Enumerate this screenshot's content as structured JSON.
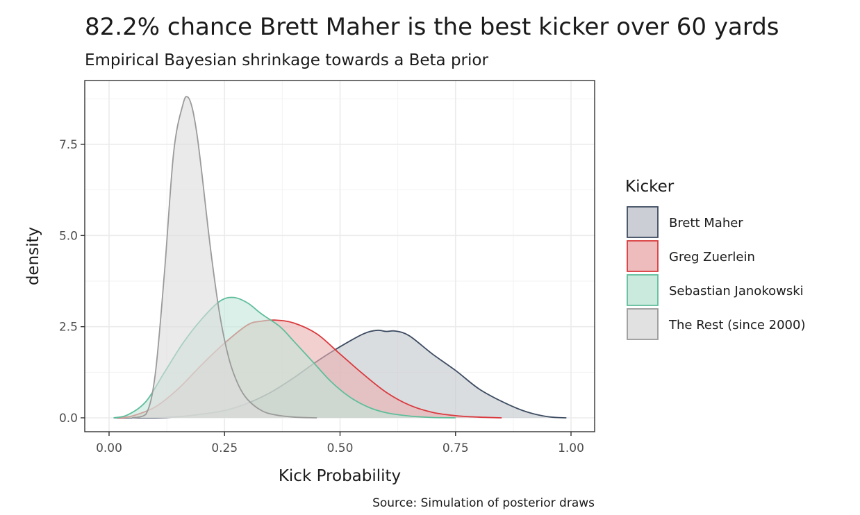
{
  "chart_data": {
    "type": "area",
    "title": "82.2% chance Brett Maher is the best kicker over 60 yards",
    "subtitle": "Empirical Bayesian shrinkage towards a Beta prior",
    "xlabel": "Kick Probability",
    "ylabel": "density",
    "caption": "Source: Simulation of posterior draws",
    "xlim": [
      0,
      1
    ],
    "ylim": [
      0,
      9
    ],
    "x_ticks": [
      "0.00",
      "0.25",
      "0.50",
      "0.75",
      "1.00"
    ],
    "y_ticks": [
      "0.0",
      "2.5",
      "5.0",
      "7.5"
    ],
    "grid": true,
    "legend": {
      "title": "Kicker",
      "position": "right"
    },
    "series": [
      {
        "name": "Brett Maher",
        "color": "#3d4b61",
        "fill": "#c2c6cc",
        "x": [
          0.01,
          0.1,
          0.15,
          0.2,
          0.25,
          0.3,
          0.35,
          0.4,
          0.45,
          0.5,
          0.55,
          0.58,
          0.6,
          0.62,
          0.65,
          0.7,
          0.75,
          0.8,
          0.85,
          0.9,
          0.95,
          0.99
        ],
        "y": [
          0.0,
          0.0,
          0.03,
          0.1,
          0.2,
          0.4,
          0.7,
          1.1,
          1.55,
          1.95,
          2.3,
          2.4,
          2.37,
          2.38,
          2.25,
          1.75,
          1.3,
          0.8,
          0.45,
          0.18,
          0.03,
          0.0
        ]
      },
      {
        "name": "Greg Zuerlein",
        "color": "#d93a3e",
        "fill": "#ebb0b1",
        "x": [
          0.02,
          0.05,
          0.1,
          0.15,
          0.2,
          0.25,
          0.3,
          0.33,
          0.36,
          0.4,
          0.45,
          0.5,
          0.55,
          0.6,
          0.65,
          0.7,
          0.75,
          0.8,
          0.85
        ],
        "y": [
          0.0,
          0.05,
          0.3,
          0.8,
          1.45,
          2.05,
          2.55,
          2.65,
          2.68,
          2.6,
          2.3,
          1.75,
          1.2,
          0.7,
          0.35,
          0.15,
          0.06,
          0.02,
          0.0
        ]
      },
      {
        "name": "Sebastian Janokowski",
        "color": "#5fbe9b",
        "fill": "#c2e6d8",
        "x": [
          0.01,
          0.04,
          0.08,
          0.12,
          0.16,
          0.2,
          0.24,
          0.27,
          0.3,
          0.33,
          0.37,
          0.4,
          0.44,
          0.48,
          0.52,
          0.56,
          0.6,
          0.65,
          0.7,
          0.75
        ],
        "y": [
          0.0,
          0.08,
          0.45,
          1.25,
          2.05,
          2.7,
          3.2,
          3.3,
          3.15,
          2.85,
          2.5,
          2.1,
          1.55,
          1.0,
          0.58,
          0.3,
          0.14,
          0.05,
          0.01,
          0.0
        ]
      },
      {
        "name": "The Rest (since 2000)",
        "color": "#9a9a9a",
        "fill": "#dcdcdc",
        "x": [
          0.05,
          0.08,
          0.1,
          0.12,
          0.14,
          0.16,
          0.17,
          0.18,
          0.19,
          0.2,
          0.22,
          0.24,
          0.26,
          0.28,
          0.3,
          0.33,
          0.36,
          0.4,
          0.45
        ],
        "y": [
          0.0,
          0.1,
          1.2,
          4.0,
          7.3,
          8.6,
          8.8,
          8.5,
          7.8,
          6.8,
          4.6,
          2.8,
          1.6,
          0.9,
          0.5,
          0.2,
          0.08,
          0.02,
          0.0
        ]
      }
    ]
  }
}
